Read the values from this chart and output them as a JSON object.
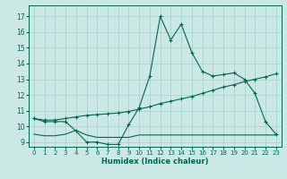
{
  "xlabel": "Humidex (Indice chaleur)",
  "bg_color": "#cce8e5",
  "grid_color": "#a8d4d0",
  "line_color": "#006655",
  "xlim": [
    -0.5,
    23.5
  ],
  "ylim": [
    8.7,
    17.7
  ],
  "xticks": [
    0,
    1,
    2,
    3,
    4,
    5,
    6,
    7,
    8,
    9,
    10,
    11,
    12,
    13,
    14,
    15,
    16,
    17,
    18,
    19,
    20,
    21,
    22,
    23
  ],
  "yticks": [
    9,
    10,
    11,
    12,
    13,
    14,
    15,
    16,
    17
  ],
  "line1_x": [
    0,
    1,
    2,
    3,
    4,
    5,
    6,
    7,
    8,
    9,
    10,
    11,
    12,
    13,
    14,
    15,
    16,
    17,
    18,
    19,
    20,
    21,
    22,
    23
  ],
  "line1_y": [
    10.5,
    10.3,
    10.3,
    10.3,
    9.7,
    9.0,
    9.0,
    8.85,
    8.85,
    10.1,
    11.2,
    13.2,
    17.0,
    15.5,
    16.5,
    14.7,
    13.5,
    13.2,
    13.3,
    13.4,
    13.0,
    12.1,
    10.3,
    9.5
  ],
  "line2_x": [
    0,
    1,
    2,
    3,
    4,
    5,
    6,
    7,
    8,
    9,
    10,
    11,
    12,
    13,
    14,
    15,
    16,
    17,
    18,
    19,
    20,
    21,
    22,
    23
  ],
  "line2_y": [
    10.5,
    10.4,
    10.4,
    10.5,
    10.6,
    10.7,
    10.75,
    10.8,
    10.85,
    10.95,
    11.1,
    11.25,
    11.45,
    11.6,
    11.75,
    11.9,
    12.1,
    12.3,
    12.5,
    12.65,
    12.85,
    13.0,
    13.15,
    13.35
  ],
  "line3_x": [
    0,
    1,
    2,
    3,
    4,
    5,
    6,
    7,
    8,
    9,
    10,
    11,
    12,
    13,
    14,
    15,
    16,
    17,
    18,
    19,
    20,
    21,
    22,
    23
  ],
  "line3_y": [
    9.5,
    9.4,
    9.4,
    9.5,
    9.75,
    9.45,
    9.3,
    9.3,
    9.3,
    9.3,
    9.45,
    9.45,
    9.45,
    9.45,
    9.45,
    9.45,
    9.45,
    9.45,
    9.45,
    9.45,
    9.45,
    9.45,
    9.45,
    9.45
  ]
}
